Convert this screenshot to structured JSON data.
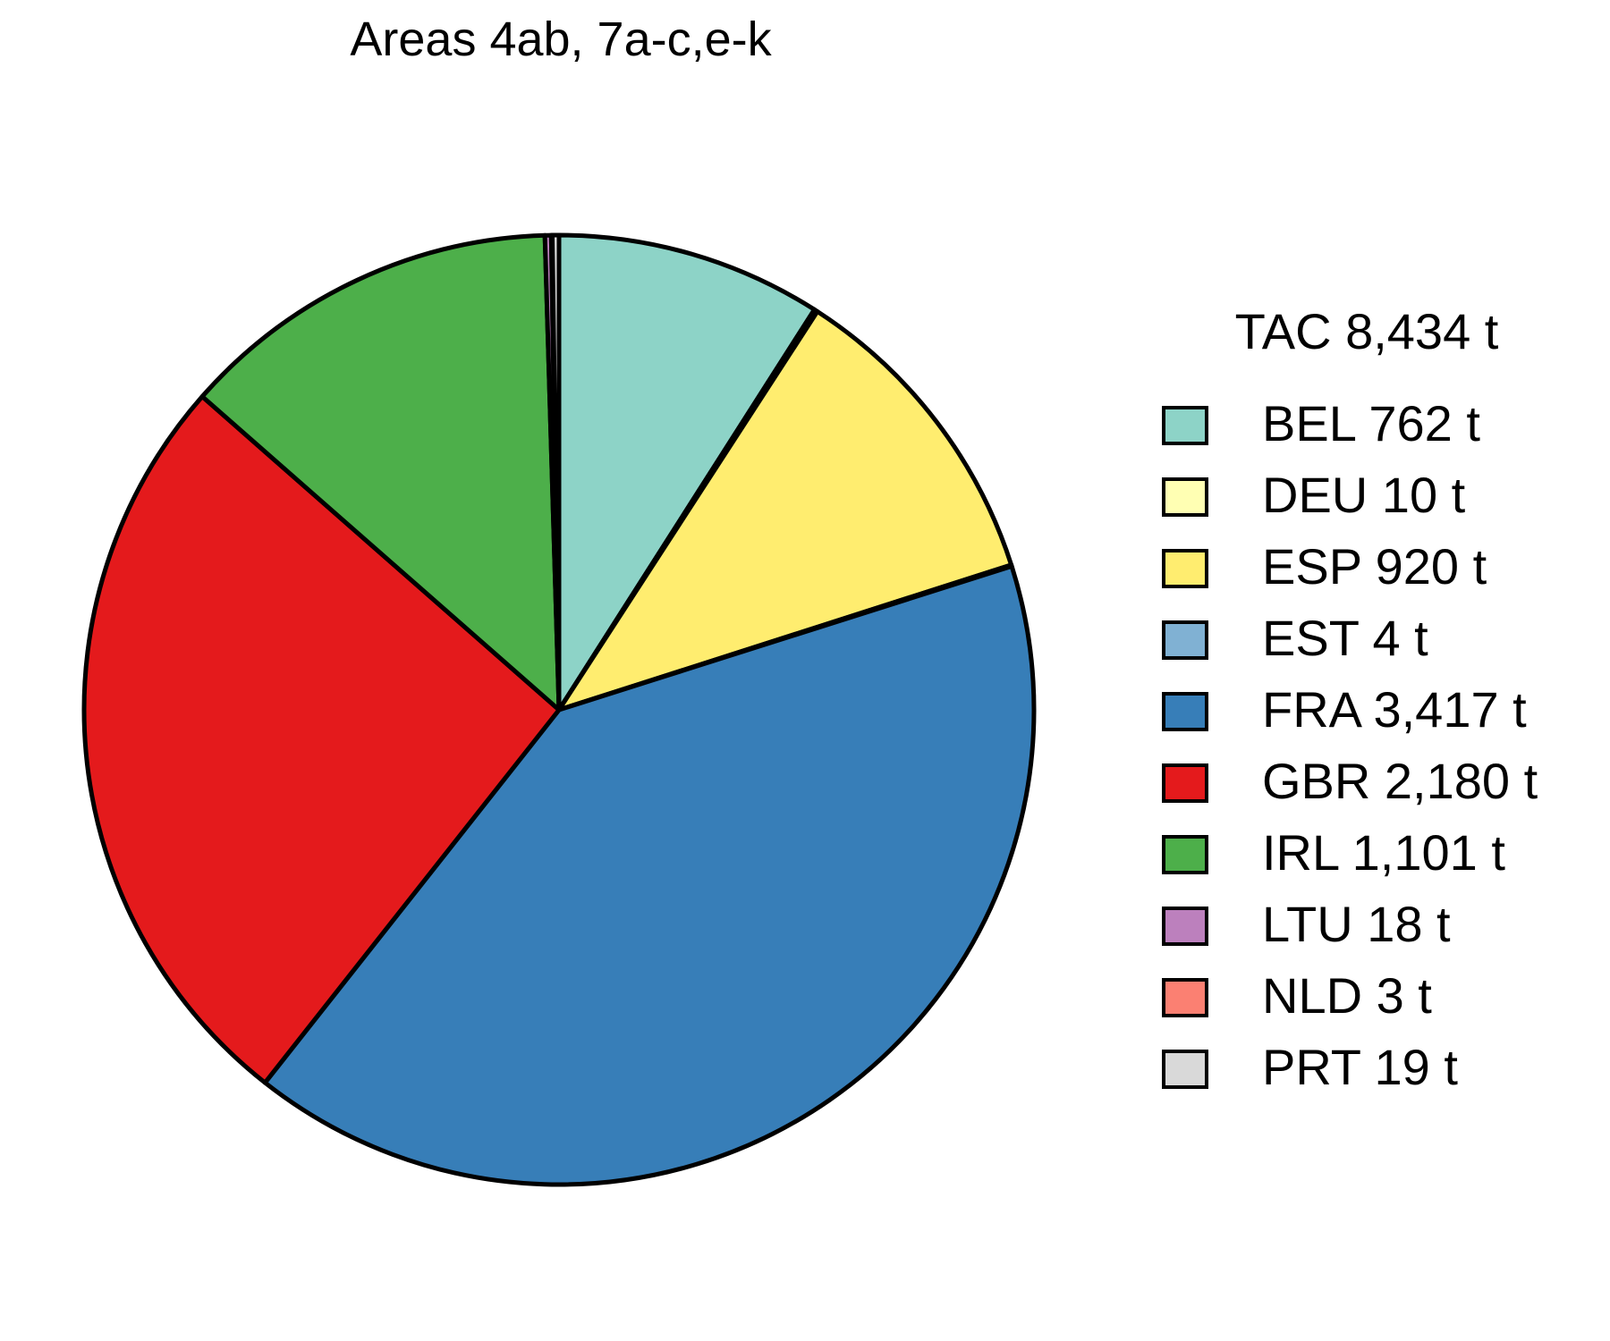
{
  "chart_data": {
    "type": "pie",
    "title": "Areas 4ab, 7a-c,e-k",
    "legend_title": "TAC 8,434 t",
    "legend_position": "right",
    "slices": [
      {
        "label": "BEL 762 t",
        "value": 762,
        "color": "#8DD3C7"
      },
      {
        "label": "DEU 10 t",
        "value": 10,
        "color": "#FFFFB3"
      },
      {
        "label": "ESP 920 t",
        "value": 920,
        "color": "#FFED6F"
      },
      {
        "label": "EST 4 t",
        "value": 4,
        "color": "#80B1D3"
      },
      {
        "label": "FRA 3,417 t",
        "value": 3417,
        "color": "#377EB8"
      },
      {
        "label": "GBR 2,180 t",
        "value": 2180,
        "color": "#E41A1C"
      },
      {
        "label": "IRL 1,101 t",
        "value": 1101,
        "color": "#4DAF4A"
      },
      {
        "label": "LTU 18 t",
        "value": 18,
        "color": "#BC80BD"
      },
      {
        "label": "NLD 3 t",
        "value": 3,
        "color": "#FB8072"
      },
      {
        "label": "PRT 19 t",
        "value": 19,
        "color": "#D9D9D9"
      }
    ]
  }
}
